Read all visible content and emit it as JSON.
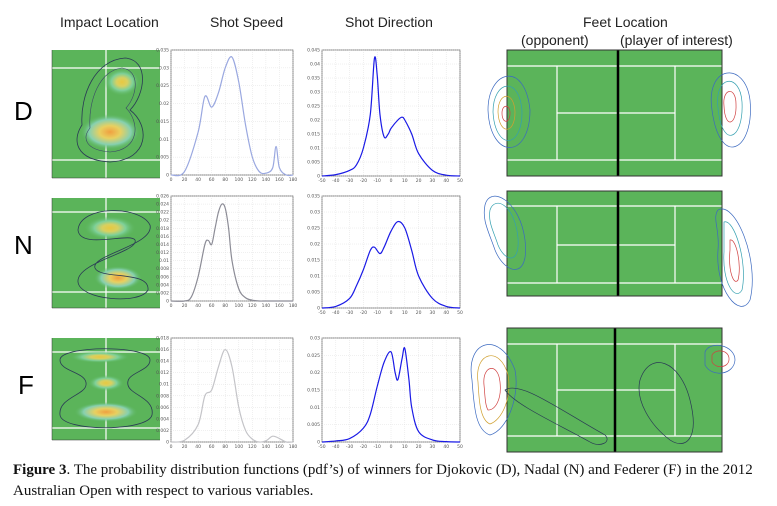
{
  "columns": {
    "impact": "Impact Location",
    "speed": "Shot Speed",
    "direction": "Shot Direction",
    "feet": "Feet Location",
    "opponent": "(opponent)",
    "player": "(player of interest)"
  },
  "rows": [
    "D",
    "N",
    "F"
  ],
  "caption": {
    "prefix": "Figure 3",
    "text": ". The probability distribution functions (pdf’s) of winners for Djokovic (D), Nadal (N) and Federer (F) in the 2012 Australian Open with respect to various variables."
  },
  "colors": {
    "court": "#5bb45a",
    "speed_D": "#9aa8e0",
    "speed_N": "#8c8c96",
    "speed_F": "#c4c4c8",
    "direction": "#1a1ae6"
  },
  "chart_data": [
    {
      "type": "line",
      "player": "D",
      "variable": "Shot Speed",
      "x": [
        0,
        20,
        40,
        50,
        60,
        70,
        80,
        90,
        100,
        110,
        120,
        130,
        140,
        150,
        155,
        160,
        170,
        180
      ],
      "y": [
        0,
        0.001,
        0.012,
        0.022,
        0.019,
        0.023,
        0.03,
        0.033,
        0.026,
        0.014,
        0.005,
        0.001,
        0.0005,
        0.002,
        0.008,
        0.002,
        0,
        0
      ],
      "xlim": [
        0,
        180
      ],
      "ylim": [
        0,
        0.035
      ],
      "xticks": [
        "0",
        "20",
        "40",
        "60",
        "80",
        "100",
        "120",
        "140",
        "160",
        "180"
      ],
      "yticks": [
        "0",
        "0.005",
        "0.01",
        "0.015",
        "0.02",
        "0.025",
        "0.03",
        "0.035"
      ]
    },
    {
      "type": "line",
      "player": "N",
      "variable": "Shot Speed",
      "x": [
        0,
        20,
        30,
        40,
        50,
        55,
        60,
        65,
        70,
        75,
        80,
        85,
        90,
        100,
        110,
        120,
        130,
        140,
        160,
        180
      ],
      "y": [
        0,
        0,
        0.001,
        0.006,
        0.014,
        0.015,
        0.014,
        0.018,
        0.022,
        0.024,
        0.023,
        0.018,
        0.01,
        0.003,
        0.0008,
        0.0002,
        0,
        0,
        0,
        0
      ],
      "xlim": [
        0,
        180
      ],
      "ylim": [
        0,
        0.026
      ],
      "xticks": [
        "0",
        "20",
        "40",
        "60",
        "80",
        "100",
        "120",
        "140",
        "160",
        "180"
      ],
      "yticks": [
        "0",
        "0.002",
        "0.004",
        "0.006",
        "0.008",
        "0.01",
        "0.012",
        "0.014",
        "0.016",
        "0.018",
        "0.02",
        "0.022",
        "0.024",
        "0.026"
      ]
    },
    {
      "type": "line",
      "player": "F",
      "variable": "Shot Speed",
      "x": [
        0,
        20,
        40,
        50,
        60,
        70,
        80,
        90,
        100,
        110,
        120,
        130,
        140,
        150,
        160,
        170,
        180
      ],
      "y": [
        0,
        0.0003,
        0.003,
        0.008,
        0.009,
        0.013,
        0.016,
        0.013,
        0.006,
        0.002,
        0.0005,
        0,
        0.0002,
        0.001,
        0.0006,
        0,
        0
      ],
      "xlim": [
        0,
        180
      ],
      "ylim": [
        0,
        0.018
      ],
      "xticks": [
        "0",
        "20",
        "40",
        "60",
        "80",
        "100",
        "120",
        "140",
        "160",
        "180"
      ],
      "yticks": [
        "0",
        "0.002",
        "0.004",
        "0.006",
        "0.008",
        "0.01",
        "0.012",
        "0.014",
        "0.016",
        "0.018"
      ]
    },
    {
      "type": "line",
      "player": "D",
      "variable": "Shot Direction",
      "x": [
        -50,
        -40,
        -30,
        -25,
        -20,
        -15,
        -12,
        -10,
        -8,
        -5,
        -2,
        0,
        5,
        8,
        10,
        15,
        20,
        30,
        40,
        50
      ],
      "y": [
        0,
        0.0005,
        0.002,
        0.004,
        0.01,
        0.022,
        0.042,
        0.036,
        0.022,
        0.014,
        0.015,
        0.017,
        0.02,
        0.021,
        0.02,
        0.015,
        0.008,
        0.002,
        0.0003,
        0
      ],
      "xlim": [
        -50,
        50
      ],
      "ylim": [
        0,
        0.045
      ],
      "xticks": [
        "-50",
        "-40",
        "-30",
        "-20",
        "-10",
        "0",
        "10",
        "20",
        "30",
        "40",
        "50"
      ],
      "yticks": [
        "0",
        "0.005",
        "0.01",
        "0.015",
        "0.02",
        "0.025",
        "0.03",
        "0.035",
        "0.04",
        "0.045"
      ]
    },
    {
      "type": "line",
      "player": "N",
      "variable": "Shot Direction",
      "x": [
        -50,
        -40,
        -30,
        -25,
        -20,
        -15,
        -12,
        -8,
        -5,
        0,
        5,
        10,
        15,
        20,
        30,
        40,
        50
      ],
      "y": [
        0,
        0.0005,
        0.003,
        0.007,
        0.012,
        0.018,
        0.019,
        0.017,
        0.019,
        0.024,
        0.027,
        0.025,
        0.018,
        0.01,
        0.003,
        0.0005,
        0
      ],
      "xlim": [
        -50,
        50
      ],
      "ylim": [
        0,
        0.035
      ],
      "xticks": [
        "-50",
        "-40",
        "-30",
        "-20",
        "-10",
        "0",
        "10",
        "20",
        "30",
        "40",
        "50"
      ],
      "yticks": [
        "0",
        "0.005",
        "0.01",
        "0.015",
        "0.02",
        "0.025",
        "0.03",
        "0.035"
      ]
    },
    {
      "type": "line",
      "player": "F",
      "variable": "Shot Direction",
      "x": [
        -50,
        -40,
        -30,
        -20,
        -15,
        -10,
        -5,
        0,
        3,
        5,
        8,
        10,
        13,
        15,
        20,
        30,
        40,
        50
      ],
      "y": [
        0,
        0.0003,
        0.001,
        0.004,
        0.008,
        0.016,
        0.023,
        0.026,
        0.02,
        0.018,
        0.024,
        0.027,
        0.018,
        0.01,
        0.003,
        0.0006,
        0.0001,
        0
      ],
      "xlim": [
        -50,
        50
      ],
      "ylim": [
        0,
        0.03
      ],
      "xticks": [
        "-50",
        "-40",
        "-30",
        "-20",
        "-10",
        "0",
        "10",
        "20",
        "30",
        "40",
        "50"
      ],
      "yticks": [
        "0",
        "0.005",
        "0.01",
        "0.015",
        "0.02",
        "0.025",
        "0.03"
      ]
    }
  ]
}
